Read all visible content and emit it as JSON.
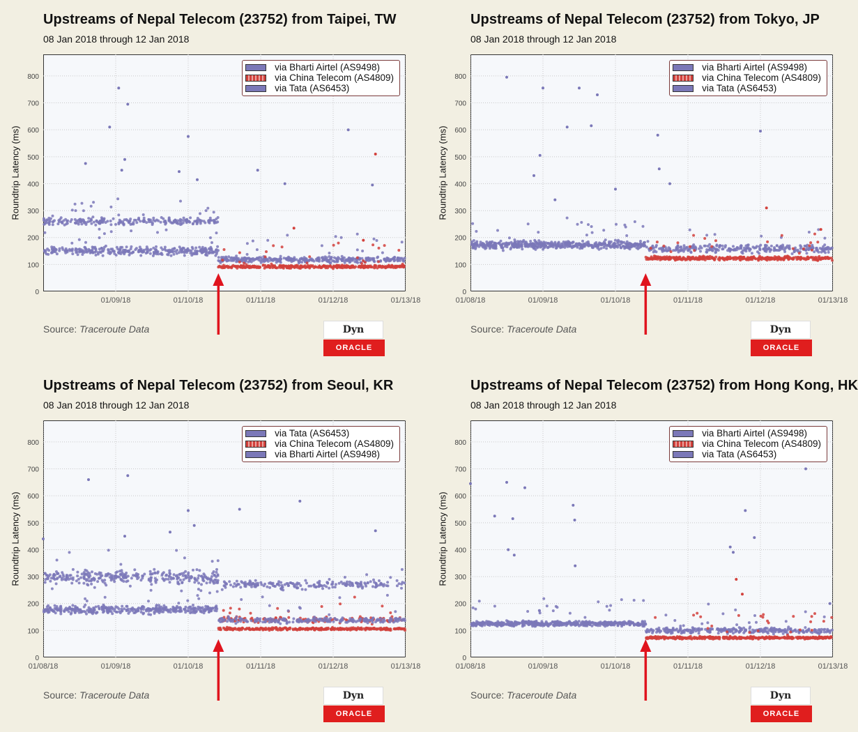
{
  "source_label": "Source:",
  "source_value": "Traceroute Data",
  "badge_dyn": "Dyn",
  "badge_oracle": "ORACLE",
  "colors": {
    "purple": "#7b78b8",
    "red": "#d2413c",
    "arrow": "#e0141e"
  },
  "chart_data": [
    {
      "type": "scatter",
      "title": "Upstreams of Nepal Telecom (23752) from Taipei, TW",
      "subtitle": "08 Jan 2018 through 12 Jan 2018",
      "ylabel": "Roundtrip Latency (ms)",
      "ylim": [
        0,
        880
      ],
      "yticks": [
        0,
        100,
        200,
        300,
        400,
        500,
        600,
        700,
        800
      ],
      "xlim": [
        "01/08/18",
        "01/13/18"
      ],
      "xticks": [
        "01/09/18",
        "01/10/18",
        "01/11/18",
        "01/12/18",
        "01/13/18"
      ],
      "grid": true,
      "legend_position": "top-right",
      "series": [
        {
          "name": "via Bharti Airtel (AS9498)",
          "color": "#7b78b8",
          "bands": [
            {
              "from": "01/08/18 00:00",
              "to": "01/10/18 10:00",
              "center": 260,
              "spread": 12,
              "count": 240
            },
            {
              "from": "01/08/18 00:00",
              "to": "01/10/18 10:00",
              "center": 150,
              "spread": 14,
              "count": 320
            },
            {
              "from": "01/10/18 10:00",
              "to": "01/13/18 00:00",
              "center": 118,
              "spread": 10,
              "count": 360
            }
          ],
          "outliers": [
            [
              "01/08/18 14:00",
              475
            ],
            [
              "01/08/18 22:00",
              610
            ],
            [
              "01/09/18 01:00",
              755
            ],
            [
              "01/09/18 04:00",
              695
            ],
            [
              "01/09/18 03:00",
              490
            ],
            [
              "01/09/18 02:00",
              450
            ],
            [
              "01/09/18 21:00",
              445
            ],
            [
              "01/10/18 00:00",
              575
            ],
            [
              "01/10/18 23:00",
              450
            ],
            [
              "01/10/18 03:00",
              415
            ],
            [
              "01/11/18 08:00",
              400
            ],
            [
              "01/12/18 05:00",
              600
            ],
            [
              "01/12/18 13:00",
              395
            ]
          ]
        },
        {
          "name": "via China Telecom (AS4809)",
          "color": "#d2413c",
          "bands": [
            {
              "from": "01/10/18 10:00",
              "to": "01/13/18 00:00",
              "center": 92,
              "spread": 5,
              "count": 420
            }
          ],
          "outliers": [
            [
              "01/12/18 14:00",
              510
            ],
            [
              "01/11/18 11:00",
              235
            ],
            [
              "01/12/18 10:00",
              190
            ]
          ]
        },
        {
          "name": "via Tata (AS6453)",
          "color": "#7b78b8",
          "bands": [],
          "outliers": []
        }
      ]
    },
    {
      "type": "scatter",
      "title": "Upstreams of Nepal Telecom (23752) from Tokyo, JP",
      "subtitle": "08 Jan 2018 through 12 Jan 2018",
      "ylabel": "Roundtrip Latency (ms)",
      "ylim": [
        0,
        880
      ],
      "yticks": [
        0,
        100,
        200,
        300,
        400,
        500,
        600,
        700,
        800
      ],
      "xlim": [
        "01/08/18",
        "01/13/18"
      ],
      "xticks": [
        "01/08/18",
        "01/09/18",
        "01/10/18",
        "01/11/18",
        "01/12/18",
        "01/13/18"
      ],
      "grid": true,
      "legend_position": "top-right",
      "series": [
        {
          "name": "via Bharti Airtel (AS9498)",
          "color": "#7b78b8",
          "bands": [
            {
              "from": "01/08/18 00:00",
              "to": "01/10/18 10:00",
              "center": 172,
              "spread": 14,
              "count": 520
            },
            {
              "from": "01/10/18 10:00",
              "to": "01/13/18 00:00",
              "center": 158,
              "spread": 14,
              "count": 300
            }
          ],
          "outliers": [
            [
              "01/08/18 12:00",
              795
            ],
            [
              "01/09/18 00:00",
              755
            ],
            [
              "01/09/18 12:00",
              755
            ],
            [
              "01/09/18 08:00",
              610
            ],
            [
              "01/09/18 16:00",
              615
            ],
            [
              "01/09/18 18:00",
              730
            ],
            [
              "01/08/18 23:00",
              505
            ],
            [
              "01/08/18 21:00",
              430
            ],
            [
              "01/10/18 14:00",
              580
            ],
            [
              "01/10/18 14:30",
              455
            ],
            [
              "01/10/18 18:00",
              400
            ],
            [
              "01/12/18 00:00",
              595
            ],
            [
              "01/09/18 04:00",
              340
            ],
            [
              "01/10/18 00:00",
              380
            ]
          ]
        },
        {
          "name": "via China Telecom (AS4809)",
          "color": "#d2413c",
          "bands": [
            {
              "from": "01/10/18 10:00",
              "to": "01/13/18 00:00",
              "center": 123,
              "spread": 6,
              "count": 420
            }
          ],
          "outliers": [
            [
              "01/12/18 02:00",
              310
            ],
            [
              "01/12/18 20:00",
              230
            ]
          ]
        },
        {
          "name": "via Tata (AS6453)",
          "color": "#7b78b8",
          "bands": [],
          "outliers": []
        }
      ]
    },
    {
      "type": "scatter",
      "title": "Upstreams of Nepal Telecom (23752) from Seoul, KR",
      "subtitle": "08 Jan 2018 through 12 Jan 2018",
      "ylabel": "Roundtrip Latency (ms)",
      "ylim": [
        0,
        880
      ],
      "yticks": [
        0,
        100,
        200,
        300,
        400,
        500,
        600,
        700,
        800
      ],
      "xlim": [
        "01/08/18",
        "01/13/18"
      ],
      "xticks": [
        "01/08/18",
        "01/09/18",
        "01/10/18",
        "01/11/18",
        "01/12/18",
        "01/13/18"
      ],
      "grid": true,
      "legend_position": "top-right",
      "series": [
        {
          "name": "via Tata (AS6453)",
          "color": "#7b78b8",
          "bands": [
            {
              "from": "01/08/18 00:00",
              "to": "01/10/18 10:00",
              "center": 298,
              "spread": 22,
              "count": 300
            },
            {
              "from": "01/10/18 10:00",
              "to": "01/13/18 00:00",
              "center": 270,
              "spread": 14,
              "count": 200
            }
          ],
          "outliers": [
            [
              "01/08/18 15:00",
              660
            ],
            [
              "01/09/18 04:00",
              675
            ],
            [
              "01/09/18 03:00",
              450
            ],
            [
              "01/09/18 18:00",
              465
            ],
            [
              "01/10/18 00:00",
              545
            ],
            [
              "01/10/18 02:00",
              490
            ],
            [
              "01/10/18 17:00",
              550
            ],
            [
              "01/11/18 13:00",
              580
            ],
            [
              "01/12/18 14:00",
              470
            ],
            [
              "01/08/18 00:00",
              440
            ]
          ]
        },
        {
          "name": "via China Telecom (AS4809)",
          "color": "#d2413c",
          "bands": [
            {
              "from": "01/10/18 10:00",
              "to": "01/13/18 00:00",
              "center": 106,
              "spread": 4,
              "count": 360
            },
            {
              "from": "01/10/18 10:00",
              "to": "01/13/18 00:00",
              "center": 140,
              "spread": 10,
              "count": 120
            }
          ],
          "outliers": []
        },
        {
          "name": "via Bharti Airtel (AS9498)",
          "color": "#7b78b8",
          "bands": [
            {
              "from": "01/08/18 00:00",
              "to": "01/10/18 10:00",
              "center": 178,
              "spread": 14,
              "count": 360
            },
            {
              "from": "01/10/18 10:00",
              "to": "01/13/18 00:00",
              "center": 138,
              "spread": 10,
              "count": 220
            }
          ],
          "outliers": []
        }
      ]
    },
    {
      "type": "scatter",
      "title": "Upstreams of Nepal Telecom (23752) from Hong Kong, HK",
      "subtitle": "08 Jan 2018 through 12 Jan 2018",
      "ylabel": "Roundtrip Latency (ms)",
      "ylim": [
        0,
        880
      ],
      "yticks": [
        0,
        100,
        200,
        300,
        400,
        500,
        600,
        700,
        800
      ],
      "xlim": [
        "01/08/18",
        "01/13/18"
      ],
      "xticks": [
        "01/08/18",
        "01/09/18",
        "01/10/18",
        "01/11/18",
        "01/12/18",
        "01/13/18"
      ],
      "grid": true,
      "legend_position": "top-right",
      "series": [
        {
          "name": "via Bharti Airtel (AS9498)",
          "color": "#7b78b8",
          "bands": [
            {
              "from": "01/08/18 00:00",
              "to": "01/10/18 10:00",
              "center": 125,
              "spread": 8,
              "count": 520
            },
            {
              "from": "01/10/18 10:00",
              "to": "01/13/18 00:00",
              "center": 100,
              "spread": 10,
              "count": 300
            }
          ],
          "outliers": [
            [
              "01/08/18 00:00",
              645
            ],
            [
              "01/08/18 08:00",
              525
            ],
            [
              "01/08/18 12:00",
              650
            ],
            [
              "01/08/18 14:00",
              515
            ],
            [
              "01/08/18 18:00",
              630
            ],
            [
              "01/08/18 12:30",
              400
            ],
            [
              "01/08/18 14:30",
              380
            ],
            [
              "01/09/18 10:00",
              565
            ],
            [
              "01/09/18 10:30",
              510
            ],
            [
              "01/09/18 10:40",
              340
            ],
            [
              "01/11/18 14:00",
              410
            ],
            [
              "01/11/18 15:00",
              390
            ],
            [
              "01/11/18 19:00",
              545
            ],
            [
              "01/11/18 22:00",
              445
            ],
            [
              "01/12/18 15:00",
              700
            ],
            [
              "01/12/18 23:00",
              200
            ]
          ]
        },
        {
          "name": "via China Telecom (AS4809)",
          "color": "#d2413c",
          "bands": [
            {
              "from": "01/10/18 10:00",
              "to": "01/13/18 00:00",
              "center": 73,
              "spread": 4,
              "count": 420
            }
          ],
          "outliers": [
            [
              "01/11/18 16:00",
              290
            ],
            [
              "01/11/18 18:00",
              235
            ]
          ]
        },
        {
          "name": "via Tata (AS6453)",
          "color": "#7b78b8",
          "bands": [],
          "outliers": []
        }
      ]
    }
  ]
}
